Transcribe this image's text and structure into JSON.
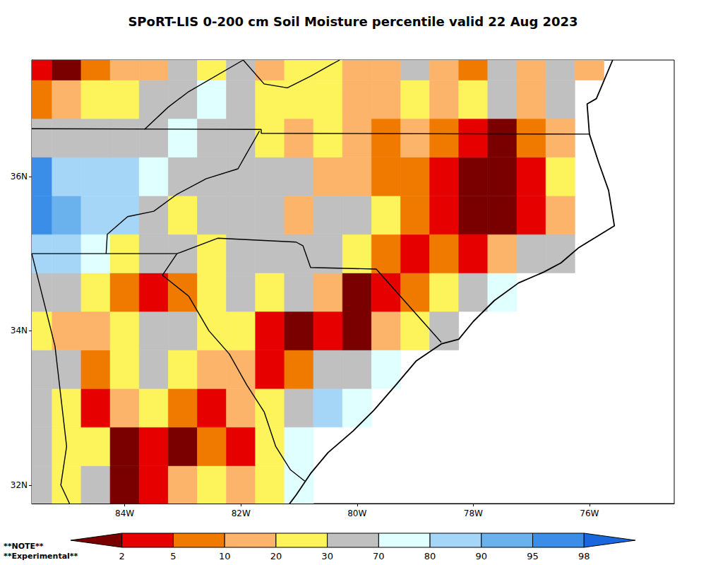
{
  "chart_data": {
    "type": "heatmap",
    "title": "SPoRT-LIS 0-200 cm Soil Moisture percentile valid 22 Aug 2023",
    "notes": [
      "**NOTE**",
      "**Experimental**"
    ],
    "xlim": [
      -85.6,
      -74.54
    ],
    "xticks": [
      {
        "value": -84,
        "label": "84W"
      },
      {
        "value": -82,
        "label": "82W"
      },
      {
        "value": -80,
        "label": "80W"
      },
      {
        "value": -78,
        "label": "78W"
      },
      {
        "value": -76,
        "label": "76W"
      }
    ],
    "ylim": [
      31.76,
      37.51
    ],
    "yticks": [
      {
        "value": 32,
        "label": "32N"
      },
      {
        "value": 34,
        "label": "34N"
      },
      {
        "value": 36,
        "label": "36N"
      }
    ],
    "grid": false,
    "lon": [
      -85.5,
      -85,
      -84.5,
      -84,
      -83.5,
      -83,
      -82.5,
      -82,
      -81.5,
      -81,
      -80.5,
      -80,
      -79.5,
      -79,
      -78.5,
      -78,
      -77.5,
      -77,
      -76.5,
      -76,
      -75.5,
      -75
    ],
    "lat": [
      32,
      32.5,
      33,
      33.5,
      34,
      34.5,
      35,
      35.5,
      36,
      36.5,
      37,
      37.5
    ],
    "cells": [
      [
        50,
        25,
        50,
        1,
        4,
        15,
        25,
        15,
        25,
        75,
        null,
        null,
        null,
        null,
        null,
        null,
        null,
        null,
        null,
        null,
        null,
        null
      ],
      [
        50,
        25,
        25,
        1,
        4,
        1,
        8,
        4,
        25,
        75,
        null,
        null,
        null,
        null,
        null,
        null,
        null,
        null,
        null,
        null,
        null,
        null
      ],
      [
        50,
        25,
        4,
        15,
        25,
        8,
        4,
        15,
        25,
        50,
        85,
        75,
        null,
        null,
        null,
        null,
        null,
        null,
        null,
        null,
        null,
        null
      ],
      [
        50,
        50,
        8,
        25,
        50,
        25,
        15,
        15,
        4,
        8,
        50,
        50,
        75,
        null,
        null,
        null,
        null,
        null,
        null,
        null,
        null,
        null
      ],
      [
        25,
        15,
        15,
        25,
        50,
        50,
        25,
        25,
        4,
        1,
        4,
        1,
        15,
        25,
        50,
        null,
        null,
        null,
        null,
        null,
        null,
        null
      ],
      [
        50,
        50,
        25,
        8,
        4,
        8,
        25,
        50,
        25,
        50,
        15,
        1,
        4,
        8,
        25,
        50,
        75,
        null,
        null,
        null,
        null,
        null
      ],
      [
        85,
        85,
        75,
        25,
        50,
        50,
        25,
        50,
        50,
        50,
        50,
        25,
        8,
        4,
        8,
        4,
        15,
        50,
        50,
        null,
        null,
        null
      ],
      [
        96,
        92,
        85,
        85,
        50,
        25,
        50,
        50,
        50,
        15,
        50,
        50,
        25,
        8,
        4,
        1,
        1,
        4,
        15,
        null,
        null,
        null
      ],
      [
        96,
        85,
        85,
        85,
        75,
        50,
        50,
        50,
        50,
        50,
        15,
        15,
        8,
        8,
        4,
        1,
        1,
        4,
        25,
        null,
        null,
        null
      ],
      [
        50,
        50,
        50,
        50,
        50,
        75,
        50,
        50,
        25,
        15,
        25,
        15,
        8,
        15,
        8,
        4,
        1,
        8,
        15,
        null,
        null,
        null
      ],
      [
        8,
        15,
        25,
        25,
        50,
        50,
        75,
        50,
        25,
        25,
        25,
        15,
        15,
        25,
        15,
        25,
        50,
        15,
        50,
        null,
        null,
        null
      ],
      [
        4,
        1,
        8,
        15,
        15,
        50,
        25,
        50,
        15,
        25,
        25,
        15,
        15,
        50,
        15,
        8,
        50,
        15,
        50,
        15,
        null,
        null
      ]
    ],
    "colorbar": {
      "range": [
        0,
        100
      ],
      "ticks": [
        2,
        5,
        10,
        20,
        30,
        70,
        80,
        90,
        95,
        98
      ],
      "colors": [
        "#7a0000",
        "#e60000",
        "#f07a00",
        "#fcb46a",
        "#fdf35a",
        "#c0c0c0",
        "#e0ffff",
        "#a6d6f7",
        "#6ab2ee",
        "#3a8ee8",
        "#1a66dd"
      ]
    },
    "coastline": [
      [
        -75.6,
        37.51
      ],
      [
        -75.88,
        37.01
      ],
      [
        -76.04,
        36.94
      ],
      [
        -76.0,
        36.55
      ],
      [
        -75.84,
        36.18
      ],
      [
        -75.67,
        35.82
      ],
      [
        -75.57,
        35.36
      ],
      [
        -76.18,
        35.08
      ],
      [
        -76.49,
        34.88
      ],
      [
        -76.79,
        34.76
      ],
      [
        -77.22,
        34.62
      ],
      [
        -77.64,
        34.39
      ],
      [
        -78.0,
        34.12
      ],
      [
        -78.25,
        33.89
      ],
      [
        -78.55,
        33.83
      ],
      [
        -78.98,
        33.61
      ],
      [
        -79.34,
        33.29
      ],
      [
        -79.71,
        32.97
      ],
      [
        -80.07,
        32.7
      ],
      [
        -80.5,
        32.42
      ],
      [
        -80.8,
        32.15
      ],
      [
        -81.05,
        31.87
      ],
      [
        -81.17,
        31.75
      ]
    ],
    "boundaries": [
      [
        [
          -85.6,
          36.62
        ],
        [
          -81.65,
          36.61
        ],
        [
          -81.65,
          36.56
        ],
        [
          -76.0,
          36.55
        ]
      ],
      [
        [
          -81.96,
          37.51
        ],
        [
          -82.9,
          37.1
        ],
        [
          -83.25,
          36.9
        ],
        [
          -83.66,
          36.61
        ]
      ],
      [
        [
          -81.96,
          37.51
        ],
        [
          -81.6,
          37.2
        ],
        [
          -81.2,
          37.15
        ],
        [
          -80.8,
          37.3
        ],
        [
          -80.45,
          37.45
        ],
        [
          -80.3,
          37.51
        ]
      ],
      [
        [
          -81.68,
          36.59
        ],
        [
          -81.9,
          36.3
        ],
        [
          -82.05,
          36.1
        ],
        [
          -82.6,
          35.97
        ],
        [
          -83.1,
          35.77
        ],
        [
          -83.5,
          35.55
        ],
        [
          -83.95,
          35.48
        ],
        [
          -84.3,
          35.25
        ],
        [
          -84.32,
          35.0
        ]
      ],
      [
        [
          -85.6,
          35.0
        ],
        [
          -83.1,
          35.0
        ]
      ],
      [
        [
          -83.1,
          35.0
        ],
        [
          -82.4,
          35.2
        ],
        [
          -81.05,
          35.15
        ],
        [
          -80.93,
          35.1
        ],
        [
          -80.8,
          34.82
        ],
        [
          -79.67,
          34.8
        ],
        [
          -78.55,
          33.85
        ]
      ],
      [
        [
          -85.6,
          35.0
        ],
        [
          -85.2,
          33.8
        ],
        [
          -85.0,
          32.5
        ],
        [
          -85.1,
          32.0
        ],
        [
          -84.95,
          31.76
        ]
      ],
      [
        [
          -83.1,
          35.0
        ],
        [
          -83.35,
          34.72
        ],
        [
          -82.9,
          34.45
        ],
        [
          -82.55,
          34.0
        ],
        [
          -82.2,
          33.7
        ],
        [
          -81.9,
          33.3
        ],
        [
          -81.6,
          32.95
        ],
        [
          -81.4,
          32.5
        ],
        [
          -81.15,
          32.2
        ],
        [
          -80.9,
          32.05
        ]
      ]
    ]
  }
}
